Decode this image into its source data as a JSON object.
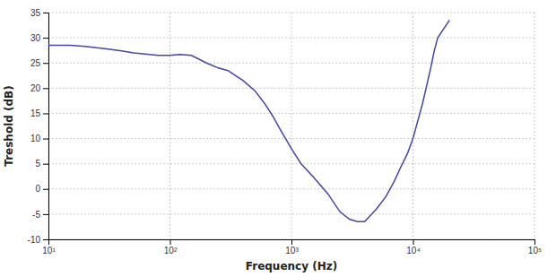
{
  "chart_data": {
    "type": "line",
    "xlabel": "Frequency (Hz)",
    "ylabel": "Treshold (dB)",
    "log": "x",
    "grid": true,
    "color": "#4444aa",
    "xlim": [
      10,
      100000
    ],
    "ylim": [
      -10,
      35
    ],
    "xticks": [
      {
        "value": 10,
        "label": "10¹"
      },
      {
        "value": 100,
        "label": "10²"
      },
      {
        "value": 1000,
        "label": "10³"
      },
      {
        "value": 10000,
        "label": "10⁴"
      },
      {
        "value": 100000,
        "label": "10⁵"
      }
    ],
    "yticks": [
      -10,
      -5,
      0,
      5,
      10,
      15,
      20,
      25,
      30,
      35
    ],
    "x": [
      10,
      12,
      15,
      20,
      25,
      30,
      40,
      50,
      60,
      80,
      100,
      120,
      150,
      200,
      250,
      300,
      400,
      500,
      600,
      700,
      800,
      1000,
      1200,
      1500,
      2000,
      2500,
      3000,
      3500,
      4000,
      5000,
      6000,
      7000,
      8000,
      9000,
      10000,
      12000,
      14000,
      15000,
      16000,
      20000
    ],
    "values": [
      28.5,
      28.5,
      28.5,
      28.3,
      28.0,
      27.8,
      27.4,
      27.0,
      26.8,
      26.5,
      26.5,
      26.7,
      26.5,
      25.0,
      24.0,
      23.5,
      21.5,
      19.5,
      17.0,
      14.5,
      12.0,
      8.0,
      5.0,
      2.5,
      -1.0,
      -4.5,
      -6.0,
      -6.5,
      -6.5,
      -4.0,
      -1.5,
      1.5,
      4.5,
      7.0,
      10.0,
      17.0,
      24.0,
      27.5,
      30.0,
      33.5
    ]
  }
}
